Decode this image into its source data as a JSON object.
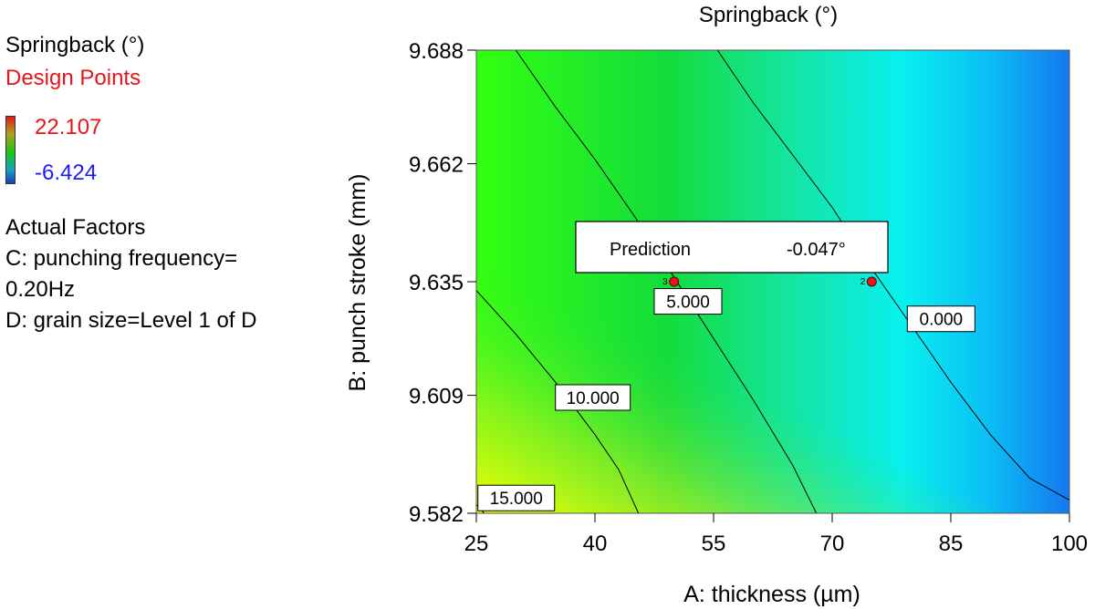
{
  "legend": {
    "response": "Springback (°)",
    "design_points": "Design Points",
    "max_value": "22.107",
    "min_value": "-6.424",
    "factors_heading": "Actual Factors",
    "factor_c_line1": "C: punching frequency=",
    "factor_c_line2": "0.20Hz",
    "factor_d": "D: grain size=Level 1 of D"
  },
  "colors": {
    "design_point": "#e8141c",
    "contour_line": "#000000",
    "gradient": [
      "#1f3fb8",
      "#19c419",
      "#e01818"
    ]
  },
  "chart_data": {
    "type": "contour",
    "title": "Springback (°)",
    "xlabel": "A: thickness (µm)",
    "ylabel": "B: punch stroke (mm)",
    "xlim": [
      25,
      100
    ],
    "ylim": [
      9.582,
      9.688
    ],
    "x_ticks": [
      "25",
      "40",
      "55",
      "70",
      "85",
      "100"
    ],
    "y_ticks": [
      "9.582",
      "9.609",
      "9.635",
      "9.662",
      "9.688"
    ],
    "color_range": [
      -6.424,
      22.107
    ],
    "contours": [
      {
        "label": "15.000",
        "value": 15.0,
        "points": [
          [
            25.0,
            9.584
          ],
          [
            25.5,
            9.583
          ],
          [
            26.0,
            9.582
          ]
        ]
      },
      {
        "label": "10.000",
        "value": 10.0,
        "points": [
          [
            25.0,
            9.633
          ],
          [
            30.0,
            9.623
          ],
          [
            35.0,
            9.612
          ],
          [
            40.0,
            9.6
          ],
          [
            43.0,
            9.592
          ],
          [
            45.5,
            9.582
          ]
        ]
      },
      {
        "label": "5.000",
        "value": 5.0,
        "points": [
          [
            30.0,
            9.688
          ],
          [
            35.0,
            9.675
          ],
          [
            40.0,
            9.663
          ],
          [
            45.0,
            9.65
          ],
          [
            50.0,
            9.636
          ],
          [
            55.0,
            9.622
          ],
          [
            60.0,
            9.608
          ],
          [
            65.0,
            9.593
          ],
          [
            68.0,
            9.582
          ]
        ]
      },
      {
        "label": "0.000",
        "value": 0.0,
        "points": [
          [
            55.5,
            9.688
          ],
          [
            60.0,
            9.676
          ],
          [
            65.0,
            9.664
          ],
          [
            70.0,
            9.652
          ],
          [
            75.0,
            9.638
          ],
          [
            80.0,
            9.625
          ],
          [
            85.0,
            9.612
          ],
          [
            90.0,
            9.6
          ],
          [
            95.0,
            9.59
          ],
          [
            100.0,
            9.585
          ]
        ]
      }
    ],
    "design_points": [
      {
        "label": "3",
        "x": 50,
        "y": 9.635
      },
      {
        "label": "2",
        "x": 75,
        "y": 9.635
      }
    ],
    "prediction": {
      "label": "Prediction",
      "value": "-0.047°"
    }
  }
}
